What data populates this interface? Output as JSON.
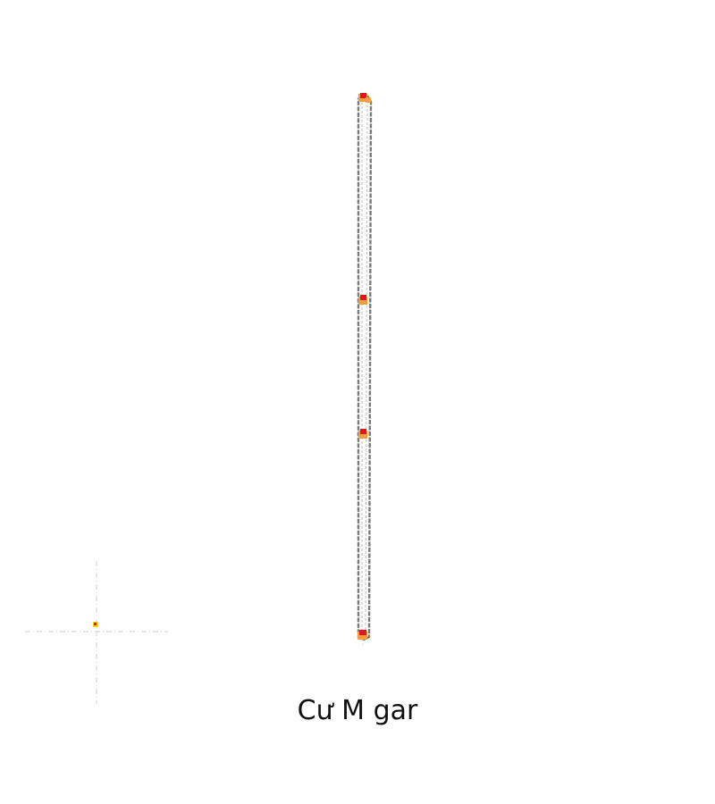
{
  "caption": "Cư M gar",
  "colors": {
    "outline": "#7a7a7a",
    "inner_dash": "#bdbdbd",
    "node_fill": "#e3141c",
    "node_halo": "#f0a040",
    "crosshair": "#d7d7d7",
    "marker": "#ffd500",
    "background": "#ffffff"
  },
  "icons": {
    "node": "vertex-marker",
    "crosshair": "crosshair-guide",
    "location": "location-marker"
  }
}
